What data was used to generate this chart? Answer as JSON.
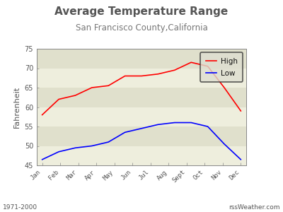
{
  "title": "Average Temperature Range",
  "subtitle": "San Francisco County,California",
  "ylabel": "Fahrenheit",
  "months": [
    "Jan",
    "Feb",
    "Mar",
    "Apr",
    "May",
    "Jun",
    "Jul",
    "Aug",
    "Sept",
    "Oct",
    "Nov",
    "Dec"
  ],
  "high": [
    58,
    62,
    63,
    65,
    65.5,
    68,
    68,
    68.5,
    69.5,
    71.5,
    70.5,
    65,
    59
  ],
  "low": [
    46.5,
    48.5,
    49.5,
    50,
    51,
    53.5,
    54.5,
    55.5,
    56,
    56,
    55,
    50.5,
    46.5
  ],
  "high_color": "#ff0000",
  "low_color": "#0000ff",
  "plot_bg_light": "#eeeedd",
  "plot_bg_dark": "#e0e0cc",
  "outer_bg": "#ffffff",
  "ylim": [
    45,
    75
  ],
  "yticks": [
    45,
    50,
    55,
    60,
    65,
    70,
    75
  ],
  "footer_left": "1971-2000",
  "footer_right": "rssWeather.com",
  "title_color": "#555555",
  "subtitle_color": "#777777",
  "legend_bg": "#deded0",
  "legend_edge": "#333333"
}
